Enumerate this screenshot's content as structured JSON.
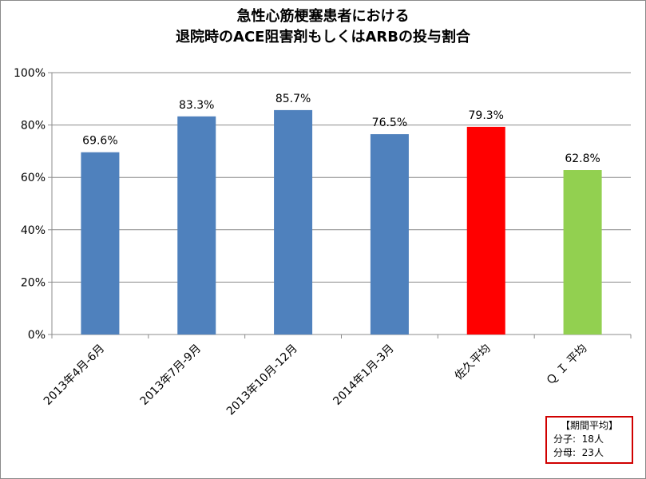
{
  "chart_data": {
    "type": "bar",
    "title_lines": [
      "急性心筋梗塞患者における",
      "退院時のACE阻害剤もしくはARBの投与割合"
    ],
    "categories": [
      "2013年4月-6月",
      "2013年7月-9月",
      "2013年10月-12月",
      "2014年1月-3月",
      "佐久平均",
      "Ｑ Ｉ 平均"
    ],
    "values": [
      69.6,
      83.3,
      85.7,
      76.5,
      79.3,
      62.8
    ],
    "value_labels": [
      "69.6%",
      "83.3%",
      "85.7%",
      "76.5%",
      "79.3%",
      "62.8%"
    ],
    "bar_colors": [
      "#4F81BD",
      "#4F81BD",
      "#4F81BD",
      "#4F81BD",
      "#FF0000",
      "#92D050"
    ],
    "ylim": [
      0,
      100
    ],
    "yticks": [
      0,
      20,
      40,
      60,
      80,
      100
    ],
    "ytick_labels": [
      "0%",
      "20%",
      "40%",
      "60%",
      "80%",
      "100%"
    ],
    "grid": true,
    "xlabel": "",
    "ylabel": ""
  },
  "summary_box": {
    "heading": "【期間平均】",
    "numerator": "分子:  18人",
    "denominator": "分母:  23人",
    "border_color": "#D00000"
  }
}
